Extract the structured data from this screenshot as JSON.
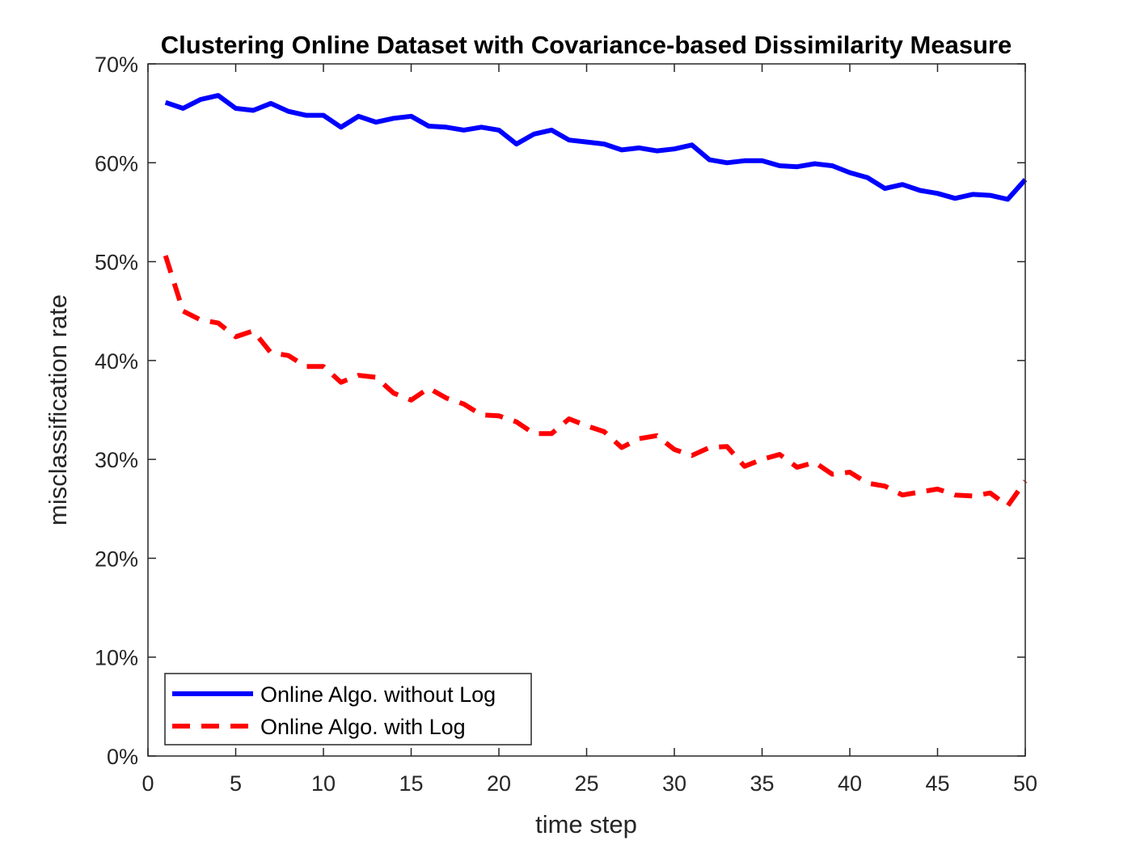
{
  "chart_data": {
    "type": "line",
    "title": "Clustering Online Dataset with Covariance-based Dissimilarity Measure",
    "xlabel": "time step",
    "ylabel": "misclassification rate",
    "xlim": [
      0,
      50
    ],
    "ylim": [
      0,
      0.7
    ],
    "xticks": [
      0,
      5,
      10,
      15,
      20,
      25,
      30,
      35,
      40,
      45,
      50
    ],
    "xtick_labels": [
      "0",
      "5",
      "10",
      "15",
      "20",
      "25",
      "30",
      "35",
      "40",
      "45",
      "50"
    ],
    "yticks": [
      0,
      0.1,
      0.2,
      0.3,
      0.4,
      0.5,
      0.6,
      0.7
    ],
    "ytick_labels": [
      "0%",
      "10%",
      "20%",
      "30%",
      "40%",
      "50%",
      "60%",
      "70%"
    ],
    "grid": false,
    "legend_position": "bottom-left",
    "x": [
      1,
      2,
      3,
      4,
      5,
      6,
      7,
      8,
      9,
      10,
      11,
      12,
      13,
      14,
      15,
      16,
      17,
      18,
      19,
      20,
      21,
      22,
      23,
      24,
      25,
      26,
      27,
      28,
      29,
      30,
      31,
      32,
      33,
      34,
      35,
      36,
      37,
      38,
      39,
      40,
      41,
      42,
      43,
      44,
      45,
      46,
      47,
      48,
      49,
      50
    ],
    "series": [
      {
        "name": "Online Algo. without Log",
        "color": "#0000ff",
        "style": "solid",
        "values": [
          0.661,
          0.655,
          0.664,
          0.668,
          0.655,
          0.653,
          0.66,
          0.652,
          0.648,
          0.648,
          0.636,
          0.647,
          0.641,
          0.645,
          0.647,
          0.637,
          0.636,
          0.633,
          0.636,
          0.633,
          0.619,
          0.629,
          0.633,
          0.623,
          0.621,
          0.619,
          0.613,
          0.615,
          0.612,
          0.614,
          0.618,
          0.603,
          0.6,
          0.602,
          0.602,
          0.597,
          0.596,
          0.599,
          0.597,
          0.59,
          0.585,
          0.574,
          0.578,
          0.572,
          0.569,
          0.564,
          0.568,
          0.567,
          0.563,
          0.583
        ]
      },
      {
        "name": "Online Algo. with Log",
        "color": "#ff0000",
        "style": "dashed",
        "values": [
          0.506,
          0.45,
          0.441,
          0.438,
          0.424,
          0.43,
          0.408,
          0.405,
          0.394,
          0.394,
          0.378,
          0.385,
          0.383,
          0.367,
          0.36,
          0.372,
          0.362,
          0.356,
          0.345,
          0.344,
          0.338,
          0.326,
          0.326,
          0.341,
          0.334,
          0.328,
          0.312,
          0.321,
          0.324,
          0.31,
          0.304,
          0.312,
          0.313,
          0.293,
          0.3,
          0.305,
          0.292,
          0.297,
          0.285,
          0.287,
          0.276,
          0.273,
          0.264,
          0.267,
          0.27,
          0.264,
          0.263,
          0.266,
          0.253,
          0.278
        ]
      }
    ]
  }
}
